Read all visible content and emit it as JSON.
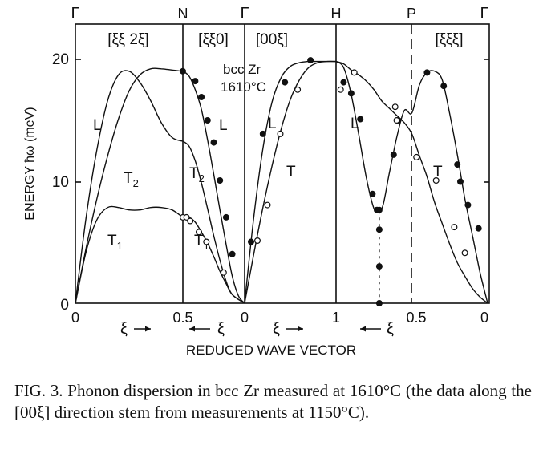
{
  "chart_data": {
    "type": "scatter",
    "title": "bcc Zr 1610°C",
    "ylabel": "ENERGY ħω (meV)",
    "xlabel": "REDUCED WAVE VECTOR",
    "ylim": [
      0,
      23
    ],
    "yticks": [
      0,
      10,
      20
    ],
    "symmetry_points": [
      "Γ",
      "N",
      "Γ",
      "H",
      "P",
      "Γ"
    ],
    "sections": [
      {
        "label": "[ξξ 2ξ]",
        "x_ticks": [
          "0",
          "0.5"
        ],
        "direction": "ξ→"
      },
      {
        "label": "[ξξ0]",
        "x_ticks": [
          "0.5",
          "0"
        ],
        "direction": "←ξ"
      },
      {
        "label": "[00ξ]",
        "x_ticks": [
          "0",
          "1"
        ],
        "direction": "ξ→"
      },
      {
        "label": "[ξξξ]",
        "x_ticks": [
          "1",
          "0.5",
          "0"
        ],
        "direction": "←ξ"
      }
    ],
    "branch_labels": [
      "L",
      "T2",
      "T1",
      "L",
      "T2",
      "T1",
      "L",
      "T",
      "L",
      "T"
    ],
    "series": [
      {
        "section": "[ξξ 2ξ]",
        "curves": {
          "L": [
            [
              0,
              0
            ],
            [
              0.05,
              7
            ],
            [
              0.1,
              12.5
            ],
            [
              0.15,
              16.5
            ],
            [
              0.2,
              18.6
            ],
            [
              0.25,
              18.9
            ],
            [
              0.3,
              18
            ],
            [
              0.35,
              16.5
            ],
            [
              0.4,
              14.7
            ],
            [
              0.45,
              13.5
            ],
            [
              0.5,
              13.2
            ]
          ],
          "T2": [
            [
              0,
              0
            ],
            [
              0.05,
              4.5
            ],
            [
              0.1,
              8.5
            ],
            [
              0.15,
              12
            ],
            [
              0.2,
              15
            ],
            [
              0.25,
              17.3
            ],
            [
              0.3,
              18.6
            ],
            [
              0.35,
              19.1
            ],
            [
              0.4,
              19.1
            ],
            [
              0.45,
              19
            ],
            [
              0.5,
              18.9
            ]
          ],
          "T1": [
            [
              0,
              0
            ],
            [
              0.05,
              4.2
            ],
            [
              0.1,
              6.8
            ],
            [
              0.15,
              7.8
            ],
            [
              0.2,
              7.8
            ],
            [
              0.25,
              7.6
            ],
            [
              0.3,
              7.6
            ],
            [
              0.35,
              7.8
            ],
            [
              0.4,
              7.8
            ],
            [
              0.45,
              7.6
            ],
            [
              0.5,
              7.0
            ]
          ]
        }
      },
      {
        "section": "[ξξ0]",
        "curves": {
          "L": [
            [
              0.5,
              18.9
            ],
            [
              0.45,
              18.5
            ],
            [
              0.4,
              17.4
            ],
            [
              0.35,
              15.8
            ],
            [
              0.3,
              13.3
            ],
            [
              0.25,
              10.5
            ],
            [
              0.2,
              7.6
            ],
            [
              0.15,
              4.8
            ],
            [
              0.1,
              2.2
            ],
            [
              0.05,
              0.6
            ],
            [
              0,
              0
            ]
          ],
          "T2": [
            [
              0.5,
              13.2
            ],
            [
              0.45,
              12.8
            ],
            [
              0.4,
              11.6
            ],
            [
              0.35,
              9.8
            ],
            [
              0.3,
              7.7
            ],
            [
              0.25,
              5.5
            ],
            [
              0.2,
              3.5
            ],
            [
              0.15,
              1.8
            ],
            [
              0.1,
              0.7
            ],
            [
              0,
              0
            ]
          ],
          "T1": [
            [
              0.5,
              7.0
            ],
            [
              0.45,
              7.0
            ],
            [
              0.4,
              6.6
            ],
            [
              0.35,
              5.8
            ],
            [
              0.3,
              4.9
            ],
            [
              0.25,
              3.8
            ],
            [
              0.2,
              2.6
            ],
            [
              0.15,
              1.6
            ],
            [
              0.1,
              0.7
            ],
            [
              0,
              0
            ]
          ]
        },
        "points": {
          "L": [
            [
              0.5,
              18.9
            ],
            [
              0.4,
              18.1
            ],
            [
              0.35,
              16.8
            ],
            [
              0.3,
              14.9
            ],
            [
              0.25,
              13.1
            ],
            [
              0.2,
              10.0
            ],
            [
              0.15,
              7.0
            ],
            [
              0.1,
              4.0
            ]
          ],
          "T1": [
            [
              0.5,
              7.0
            ],
            [
              0.47,
              7.0
            ],
            [
              0.44,
              6.7
            ],
            [
              0.37,
              5.8
            ],
            [
              0.31,
              5.0
            ],
            [
              0.17,
              2.5
            ]
          ]
        }
      },
      {
        "section": "[00ξ]",
        "curves": {
          "L": [
            [
              0,
              0
            ],
            [
              0.1,
              7
            ],
            [
              0.2,
              12.6
            ],
            [
              0.3,
              16.4
            ],
            [
              0.4,
              18.4
            ],
            [
              0.5,
              19.3
            ],
            [
              0.6,
              19.6
            ],
            [
              0.7,
              19.7
            ],
            [
              0.8,
              19.7
            ],
            [
              0.9,
              19.7
            ],
            [
              1.0,
              19.7
            ]
          ],
          "T": [
            [
              0,
              0
            ],
            [
              0.1,
              4
            ],
            [
              0.2,
              7.8
            ],
            [
              0.3,
              11.2
            ],
            [
              0.4,
              14.2
            ],
            [
              0.5,
              16.6
            ],
            [
              0.6,
              18.2
            ],
            [
              0.7,
              19.2
            ],
            [
              0.8,
              19.6
            ],
            [
              0.9,
              19.7
            ],
            [
              1.0,
              19.7
            ]
          ]
        },
        "points": {
          "L": [
            [
              0.07,
              5.0
            ],
            [
              0.2,
              13.8
            ],
            [
              0.44,
              18.0
            ],
            [
              0.72,
              19.8
            ]
          ],
          "T": [
            [
              0.14,
              5.1
            ],
            [
              0.25,
              8.0
            ],
            [
              0.39,
              13.8
            ],
            [
              0.58,
              17.4
            ]
          ]
        }
      },
      {
        "section": "[ξξξ]",
        "curves": {
          "L": [
            [
              1.0,
              19.7
            ],
            [
              0.95,
              19.2
            ],
            [
              0.9,
              17.0
            ],
            [
              0.85,
              13.7
            ],
            [
              0.8,
              10.2
            ],
            [
              0.75,
              7.7
            ],
            [
              0.72,
              7.5
            ],
            [
              0.69,
              8.0
            ],
            [
              0.65,
              10.5
            ],
            [
              0.6,
              13.5
            ],
            [
              0.55,
              15.7
            ],
            [
              0.5,
              15.5
            ],
            [
              0.45,
              17.8
            ],
            [
              0.4,
              18.8
            ],
            [
              0.35,
              18.9
            ],
            [
              0.3,
              18.2
            ],
            [
              0.25,
              15.4
            ],
            [
              0.2,
              12.1
            ],
            [
              0.15,
              8.5
            ],
            [
              0.1,
              5.5
            ],
            [
              0.05,
              2.5
            ],
            [
              0,
              0
            ]
          ],
          "T": [
            [
              1.0,
              19.7
            ],
            [
              0.95,
              19.5
            ],
            [
              0.9,
              19.0
            ],
            [
              0.85,
              18.6
            ],
            [
              0.8,
              18.1
            ],
            [
              0.75,
              17.4
            ],
            [
              0.7,
              16.5
            ],
            [
              0.65,
              15.9
            ],
            [
              0.6,
              15.3
            ],
            [
              0.55,
              14.7
            ],
            [
              0.5,
              13.8
            ],
            [
              0.45,
              12.0
            ],
            [
              0.4,
              10.3
            ],
            [
              0.35,
              8.2
            ],
            [
              0.3,
              6.5
            ],
            [
              0.25,
              4.8
            ],
            [
              0.2,
              3.3
            ],
            [
              0.15,
              2.2
            ],
            [
              0.1,
              1.2
            ],
            [
              0.05,
              0.5
            ],
            [
              0,
              0
            ]
          ]
        },
        "points": {
          "L": [
            [
              0.95,
              18.0
            ],
            [
              0.9,
              17.1
            ],
            [
              0.84,
              15.0
            ],
            [
              0.76,
              8.9
            ],
            [
              0.73,
              7.6
            ],
            [
              0.715,
              7.6
            ],
            [
              0.62,
              12.1
            ],
            [
              0.59,
              14.9
            ],
            [
              0.4,
              18.8
            ],
            [
              0.29,
              17.7
            ],
            [
              0.2,
              11.3
            ],
            [
              0.18,
              9.9
            ],
            [
              0.13,
              8.0
            ],
            [
              0.06,
              6.1
            ],
            [
              0.715,
              6.0
            ],
            [
              0.715,
              3.0
            ],
            [
              0.715,
              0
            ]
          ],
          "T": [
            [
              0.97,
              17.4
            ],
            [
              0.88,
              18.8
            ],
            [
              0.61,
              16.0
            ],
            [
              0.6,
              14.9
            ],
            [
              0.47,
              11.9
            ],
            [
              0.34,
              10.0
            ],
            [
              0.22,
              6.2
            ],
            [
              0.15,
              4.1
            ]
          ]
        }
      }
    ]
  },
  "labels": {
    "gamma1": "Γ",
    "n": "N",
    "gamma2": "Γ",
    "h": "H",
    "p": "P",
    "gamma3": "Γ",
    "dir1": "[ξξ 2ξ]",
    "dir2": "[ξξ0]",
    "dir3": "[00ξ]",
    "dir4": "[ξξξ]",
    "material": "bcc  Zr",
    "temperature": "1610°C",
    "ylabel": "ENERGY ħω (meV)",
    "xlabel": "REDUCED WAVE VECTOR",
    "y0": "0",
    "y10": "10",
    "y20": "20",
    "xt0": "0",
    "xt05a": "0.5",
    "xt0b": "0",
    "xt1": "1",
    "xt05b": "0.5",
    "xt0c": "0",
    "arrow1": "ξ",
    "arrow2": "ξ",
    "arrow3": "ξ",
    "arrow4": "ξ",
    "b_L1": "L",
    "b_T2a": "T",
    "b_T2a_sub": "2",
    "b_T1a": "T",
    "b_T1a_sub": "1",
    "b_L2": "L",
    "b_T2b": "T",
    "b_T2b_sub": "2",
    "b_T1b": "T",
    "b_T1b_sub": "1",
    "b_L3": "L",
    "b_T3": "T",
    "b_L4": "L",
    "b_T4": "T"
  },
  "caption": "FIG. 3. Phonon dispersion in bcc Zr measured at 1610°C (the data along the [00ξ] direction stem from measurements at 1150°C)."
}
